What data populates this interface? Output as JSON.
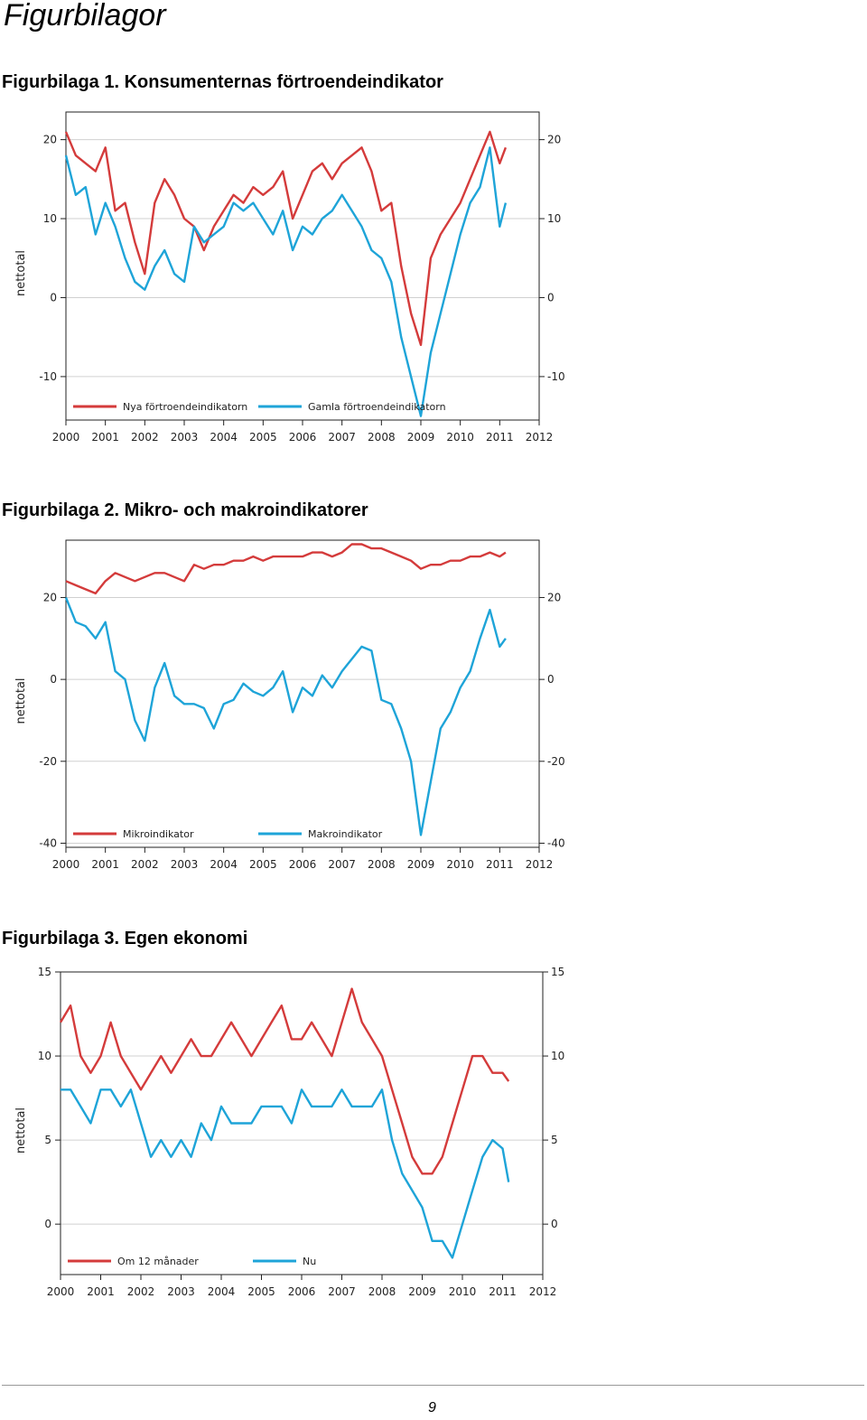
{
  "page": {
    "title": "Figurbilagor",
    "page_number": "9"
  },
  "colors": {
    "red": "#d43b3b",
    "blue": "#1ea4d8",
    "frame": "#222222",
    "grid": "#d0d0d0"
  },
  "figures": [
    {
      "heading": "Figurbilaga 1. Konsumenternas förtroendeindikator"
    },
    {
      "heading": "Figurbilaga 2. Mikro- och makroindikatorer"
    },
    {
      "heading": "Figurbilaga 3. Egen ekonomi"
    }
  ],
  "chart_data": [
    {
      "type": "line",
      "title": "Figurbilaga 1. Konsumenternas förtroendeindikator",
      "ylabel": "nettotal",
      "x_ticks": [
        "2000",
        "2001",
        "2002",
        "2003",
        "2004",
        "2005",
        "2006",
        "2007",
        "2008",
        "2009",
        "2010",
        "2011",
        "2012"
      ],
      "xlim": [
        2000,
        2012
      ],
      "y_ticks": [
        -10,
        0,
        10,
        20
      ],
      "ylim": [
        -15.5,
        23.5
      ],
      "grid": true,
      "legend": "bottom",
      "series": [
        {
          "name": "Nya förtroendeindikatorn",
          "color": "#d43b3b",
          "x": [
            2000,
            2000.25,
            2000.5,
            2000.75,
            2001,
            2001.25,
            2001.5,
            2001.75,
            2002,
            2002.25,
            2002.5,
            2002.75,
            2003,
            2003.25,
            2003.5,
            2003.75,
            2004,
            2004.25,
            2004.5,
            2004.75,
            2005,
            2005.25,
            2005.5,
            2005.75,
            2006,
            2006.25,
            2006.5,
            2006.75,
            2007,
            2007.25,
            2007.5,
            2007.75,
            2008,
            2008.25,
            2008.5,
            2008.75,
            2009,
            2009.25,
            2009.5,
            2009.75,
            2010,
            2010.25,
            2010.5,
            2010.75,
            2011,
            2011.15
          ],
          "values": [
            21,
            18,
            17,
            16,
            19,
            11,
            12,
            7,
            3,
            12,
            15,
            13,
            10,
            9,
            6,
            9,
            11,
            13,
            12,
            14,
            13,
            14,
            16,
            10,
            13,
            16,
            17,
            15,
            17,
            18,
            19,
            16,
            11,
            12,
            4,
            -2,
            -6,
            5,
            8,
            10,
            12,
            15,
            18,
            21,
            17,
            19
          ]
        },
        {
          "name": "Gamla förtroendeindikatorn",
          "color": "#1ea4d8",
          "x": [
            2000,
            2000.25,
            2000.5,
            2000.75,
            2001,
            2001.25,
            2001.5,
            2001.75,
            2002,
            2002.25,
            2002.5,
            2002.75,
            2003,
            2003.25,
            2003.5,
            2003.75,
            2004,
            2004.25,
            2004.5,
            2004.75,
            2005,
            2005.25,
            2005.5,
            2005.75,
            2006,
            2006.25,
            2006.5,
            2006.75,
            2007,
            2007.25,
            2007.5,
            2007.75,
            2008,
            2008.25,
            2008.5,
            2008.75,
            2009,
            2009.25,
            2009.5,
            2009.75,
            2010,
            2010.25,
            2010.5,
            2010.75,
            2011,
            2011.15
          ],
          "values": [
            18,
            13,
            14,
            8,
            12,
            9,
            5,
            2,
            1,
            4,
            6,
            3,
            2,
            9,
            7,
            8,
            9,
            12,
            11,
            12,
            10,
            8,
            11,
            6,
            9,
            8,
            10,
            11,
            13,
            11,
            9,
            6,
            5,
            2,
            -5,
            -10,
            -15,
            -7,
            -2,
            3,
            8,
            12,
            14,
            19,
            9,
            12
          ]
        }
      ]
    },
    {
      "type": "line",
      "title": "Figurbilaga 2. Mikro- och makroindikatorer",
      "ylabel": "nettotal",
      "x_ticks": [
        "2000",
        "2001",
        "2002",
        "2003",
        "2004",
        "2005",
        "2006",
        "2007",
        "2008",
        "2009",
        "2010",
        "2011",
        "2012"
      ],
      "xlim": [
        2000,
        2012
      ],
      "y_ticks": [
        -40,
        -20,
        0,
        20
      ],
      "ylim": [
        -41,
        34
      ],
      "grid": true,
      "legend": "bottom",
      "series": [
        {
          "name": "Mikroindikator",
          "color": "#d43b3b",
          "x": [
            2000,
            2000.25,
            2000.5,
            2000.75,
            2001,
            2001.25,
            2001.5,
            2001.75,
            2002,
            2002.25,
            2002.5,
            2002.75,
            2003,
            2003.25,
            2003.5,
            2003.75,
            2004,
            2004.25,
            2004.5,
            2004.75,
            2005,
            2005.25,
            2005.5,
            2005.75,
            2006,
            2006.25,
            2006.5,
            2006.75,
            2007,
            2007.25,
            2007.5,
            2007.75,
            2008,
            2008.25,
            2008.5,
            2008.75,
            2009,
            2009.25,
            2009.5,
            2009.75,
            2010,
            2010.25,
            2010.5,
            2010.75,
            2011,
            2011.15
          ],
          "values": [
            24,
            23,
            22,
            21,
            24,
            26,
            25,
            24,
            25,
            26,
            26,
            25,
            24,
            28,
            27,
            28,
            28,
            29,
            29,
            30,
            29,
            30,
            30,
            30,
            30,
            31,
            31,
            30,
            31,
            33,
            33,
            32,
            32,
            31,
            30,
            29,
            27,
            28,
            28,
            29,
            29,
            30,
            30,
            31,
            30,
            31
          ]
        },
        {
          "name": "Makroindikator",
          "color": "#1ea4d8",
          "x": [
            2000,
            2000.25,
            2000.5,
            2000.75,
            2001,
            2001.25,
            2001.5,
            2001.75,
            2002,
            2002.25,
            2002.5,
            2002.75,
            2003,
            2003.25,
            2003.5,
            2003.75,
            2004,
            2004.25,
            2004.5,
            2004.75,
            2005,
            2005.25,
            2005.5,
            2005.75,
            2006,
            2006.25,
            2006.5,
            2006.75,
            2007,
            2007.25,
            2007.5,
            2007.75,
            2008,
            2008.25,
            2008.5,
            2008.75,
            2009,
            2009.25,
            2009.5,
            2009.75,
            2010,
            2010.25,
            2010.5,
            2010.75,
            2011,
            2011.15
          ],
          "values": [
            20,
            14,
            13,
            10,
            14,
            2,
            0,
            -10,
            -15,
            -2,
            4,
            -4,
            -6,
            -6,
            -7,
            -12,
            -6,
            -5,
            -1,
            -3,
            -4,
            -2,
            2,
            -8,
            -2,
            -4,
            1,
            -2,
            2,
            5,
            8,
            7,
            -5,
            -6,
            -12,
            -20,
            -38,
            -25,
            -12,
            -8,
            -2,
            2,
            10,
            17,
            8,
            10
          ]
        }
      ]
    },
    {
      "type": "line",
      "title": "Figurbilaga 3. Egen ekonomi",
      "ylabel": "nettotal",
      "x_ticks": [
        "2000",
        "2001",
        "2002",
        "2003",
        "2004",
        "2005",
        "2006",
        "2007",
        "2008",
        "2009",
        "2010",
        "2011",
        "2012"
      ],
      "xlim": [
        2000,
        2012
      ],
      "y_ticks": [
        0,
        5,
        10,
        15
      ],
      "ylim": [
        -3,
        15
      ],
      "grid": true,
      "legend": "bottom",
      "series": [
        {
          "name": "Om 12 månader",
          "color": "#d43b3b",
          "x": [
            2000,
            2000.25,
            2000.5,
            2000.75,
            2001,
            2001.25,
            2001.5,
            2001.75,
            2002,
            2002.25,
            2002.5,
            2002.75,
            2003,
            2003.25,
            2003.5,
            2003.75,
            2004,
            2004.25,
            2004.5,
            2004.75,
            2005,
            2005.25,
            2005.5,
            2005.75,
            2006,
            2006.25,
            2006.5,
            2006.75,
            2007,
            2007.25,
            2007.5,
            2007.75,
            2008,
            2008.25,
            2008.5,
            2008.75,
            2009,
            2009.25,
            2009.5,
            2009.75,
            2010,
            2010.25,
            2010.5,
            2010.75,
            2011,
            2011.15
          ],
          "values": [
            12,
            13,
            10,
            9,
            10,
            12,
            10,
            9,
            8,
            9,
            10,
            9,
            10,
            11,
            10,
            10,
            11,
            12,
            11,
            10,
            11,
            12,
            13,
            11,
            11,
            12,
            11,
            10,
            12,
            14,
            12,
            11,
            10,
            8,
            6,
            4,
            3,
            3,
            4,
            6,
            8,
            10,
            10,
            9,
            9,
            8.5
          ]
        },
        {
          "name": "Nu",
          "color": "#1ea4d8",
          "x": [
            2000,
            2000.25,
            2000.5,
            2000.75,
            2001,
            2001.25,
            2001.5,
            2001.75,
            2002,
            2002.25,
            2002.5,
            2002.75,
            2003,
            2003.25,
            2003.5,
            2003.75,
            2004,
            2004.25,
            2004.5,
            2004.75,
            2005,
            2005.25,
            2005.5,
            2005.75,
            2006,
            2006.25,
            2006.5,
            2006.75,
            2007,
            2007.25,
            2007.5,
            2007.75,
            2008,
            2008.25,
            2008.5,
            2008.75,
            2009,
            2009.25,
            2009.5,
            2009.75,
            2010,
            2010.25,
            2010.5,
            2010.75,
            2011,
            2011.15
          ],
          "values": [
            8,
            8,
            7,
            6,
            8,
            8,
            7,
            8,
            6,
            4,
            5,
            4,
            5,
            4,
            6,
            5,
            7,
            6,
            6,
            6,
            7,
            7,
            7,
            6,
            8,
            7,
            7,
            7,
            8,
            7,
            7,
            7,
            8,
            5,
            3,
            2,
            1,
            -1,
            -1,
            -2,
            0,
            2,
            4,
            5,
            4.5,
            2.5
          ]
        }
      ]
    }
  ]
}
